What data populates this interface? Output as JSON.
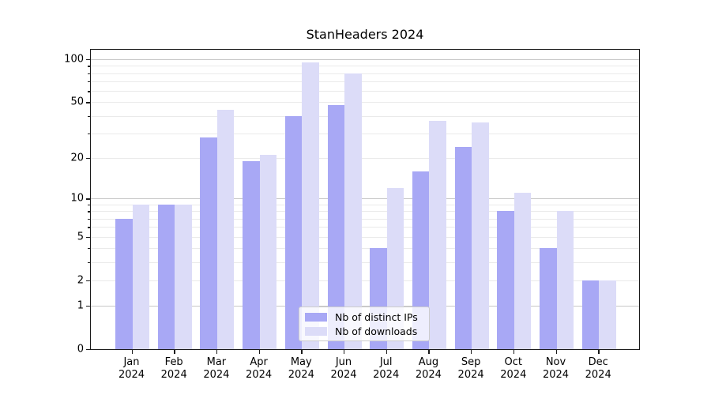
{
  "chart_data": {
    "type": "bar",
    "title": "StanHeaders 2024",
    "categories": [
      "Jan",
      "Feb",
      "Mar",
      "Apr",
      "May",
      "Jun",
      "Jul",
      "Aug",
      "Sep",
      "Oct",
      "Nov",
      "Dec"
    ],
    "x_axis": {
      "year_label": "2024"
    },
    "series": [
      {
        "name": "Nb of distinct IPs",
        "color": "#a8a8f5",
        "values": [
          7,
          9,
          28,
          19,
          40,
          48,
          4,
          16,
          24,
          8,
          4,
          2
        ]
      },
      {
        "name": "Nb of downloads",
        "color": "#dcdcf8",
        "values": [
          9,
          9,
          44,
          21,
          95,
          80,
          12,
          37,
          36,
          11,
          8,
          2
        ]
      }
    ],
    "y_axis": {
      "scale": "log1p",
      "ticks": [
        0,
        1,
        2,
        5,
        10,
        20,
        50,
        100
      ],
      "minor_ticks": [
        3,
        4,
        6,
        7,
        8,
        9,
        30,
        40,
        60,
        70,
        80,
        90
      ],
      "ylim": [
        0,
        117
      ]
    },
    "grid": true,
    "legend_position": "bottom-center"
  },
  "colors": {
    "grid_decade": "#c7c7c7",
    "grid_minor": "#eaeaea",
    "spine": "#1a1a1a"
  }
}
